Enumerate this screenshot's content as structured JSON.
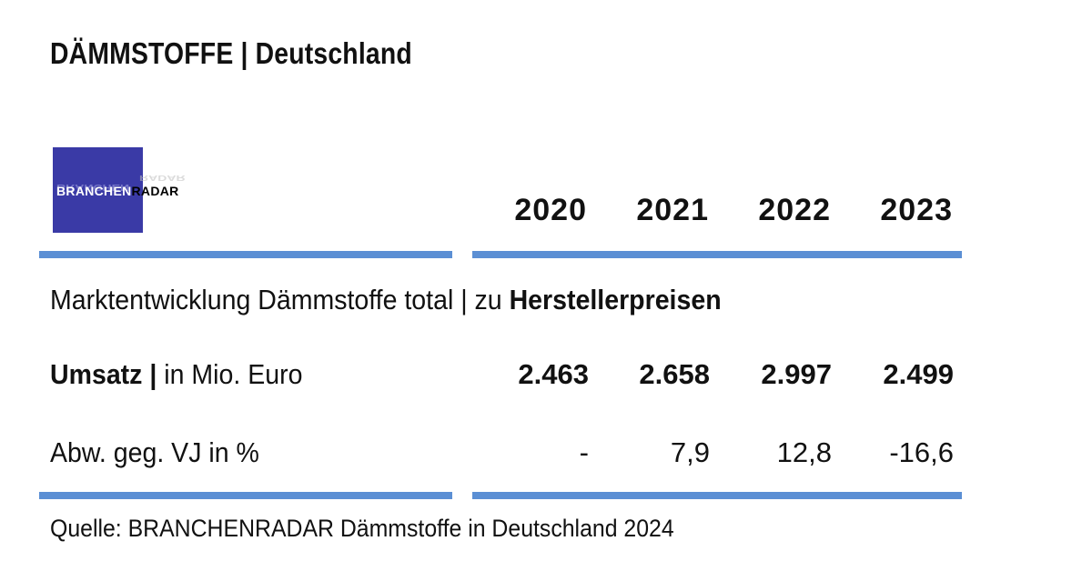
{
  "header": {
    "title": "DÄMMSTOFFE | Deutschland"
  },
  "logo": {
    "part1": "BRANCHEN",
    "part2": "RADAR"
  },
  "table": {
    "years": [
      "2020",
      "2021",
      "2022",
      "2023"
    ],
    "section_label_prefix": "Marktentwicklung Dämmstoffe total | zu ",
    "section_label_bold": "Herstellerpreisen",
    "row1_label_bold": "Umsatz |",
    "row1_label_rest": " in Mio. Euro",
    "row1_values": [
      "2.463",
      "2.658",
      "2.997",
      "2.499"
    ],
    "row2_label": "Abw. geg. VJ in %",
    "row2_values": [
      "-",
      "7,9",
      "12,8",
      "-16,6"
    ]
  },
  "source": "Quelle: BRANCHENRADAR Dämmstoffe in Deutschland 2024",
  "colors": {
    "rule": "#5b8fd4",
    "logo_bg": "#3a3aa6"
  },
  "chart_data": {
    "type": "table",
    "title": "DÄMMSTOFFE | Deutschland",
    "subtitle": "Marktentwicklung Dämmstoffe total | zu Herstellerpreisen",
    "columns": [
      "2020",
      "2021",
      "2022",
      "2023"
    ],
    "rows": [
      {
        "label": "Umsatz | in Mio. Euro",
        "values": [
          2463,
          2658,
          2997,
          2499
        ]
      },
      {
        "label": "Abw. geg. VJ in %",
        "values": [
          null,
          7.9,
          12.8,
          -16.6
        ]
      }
    ]
  }
}
